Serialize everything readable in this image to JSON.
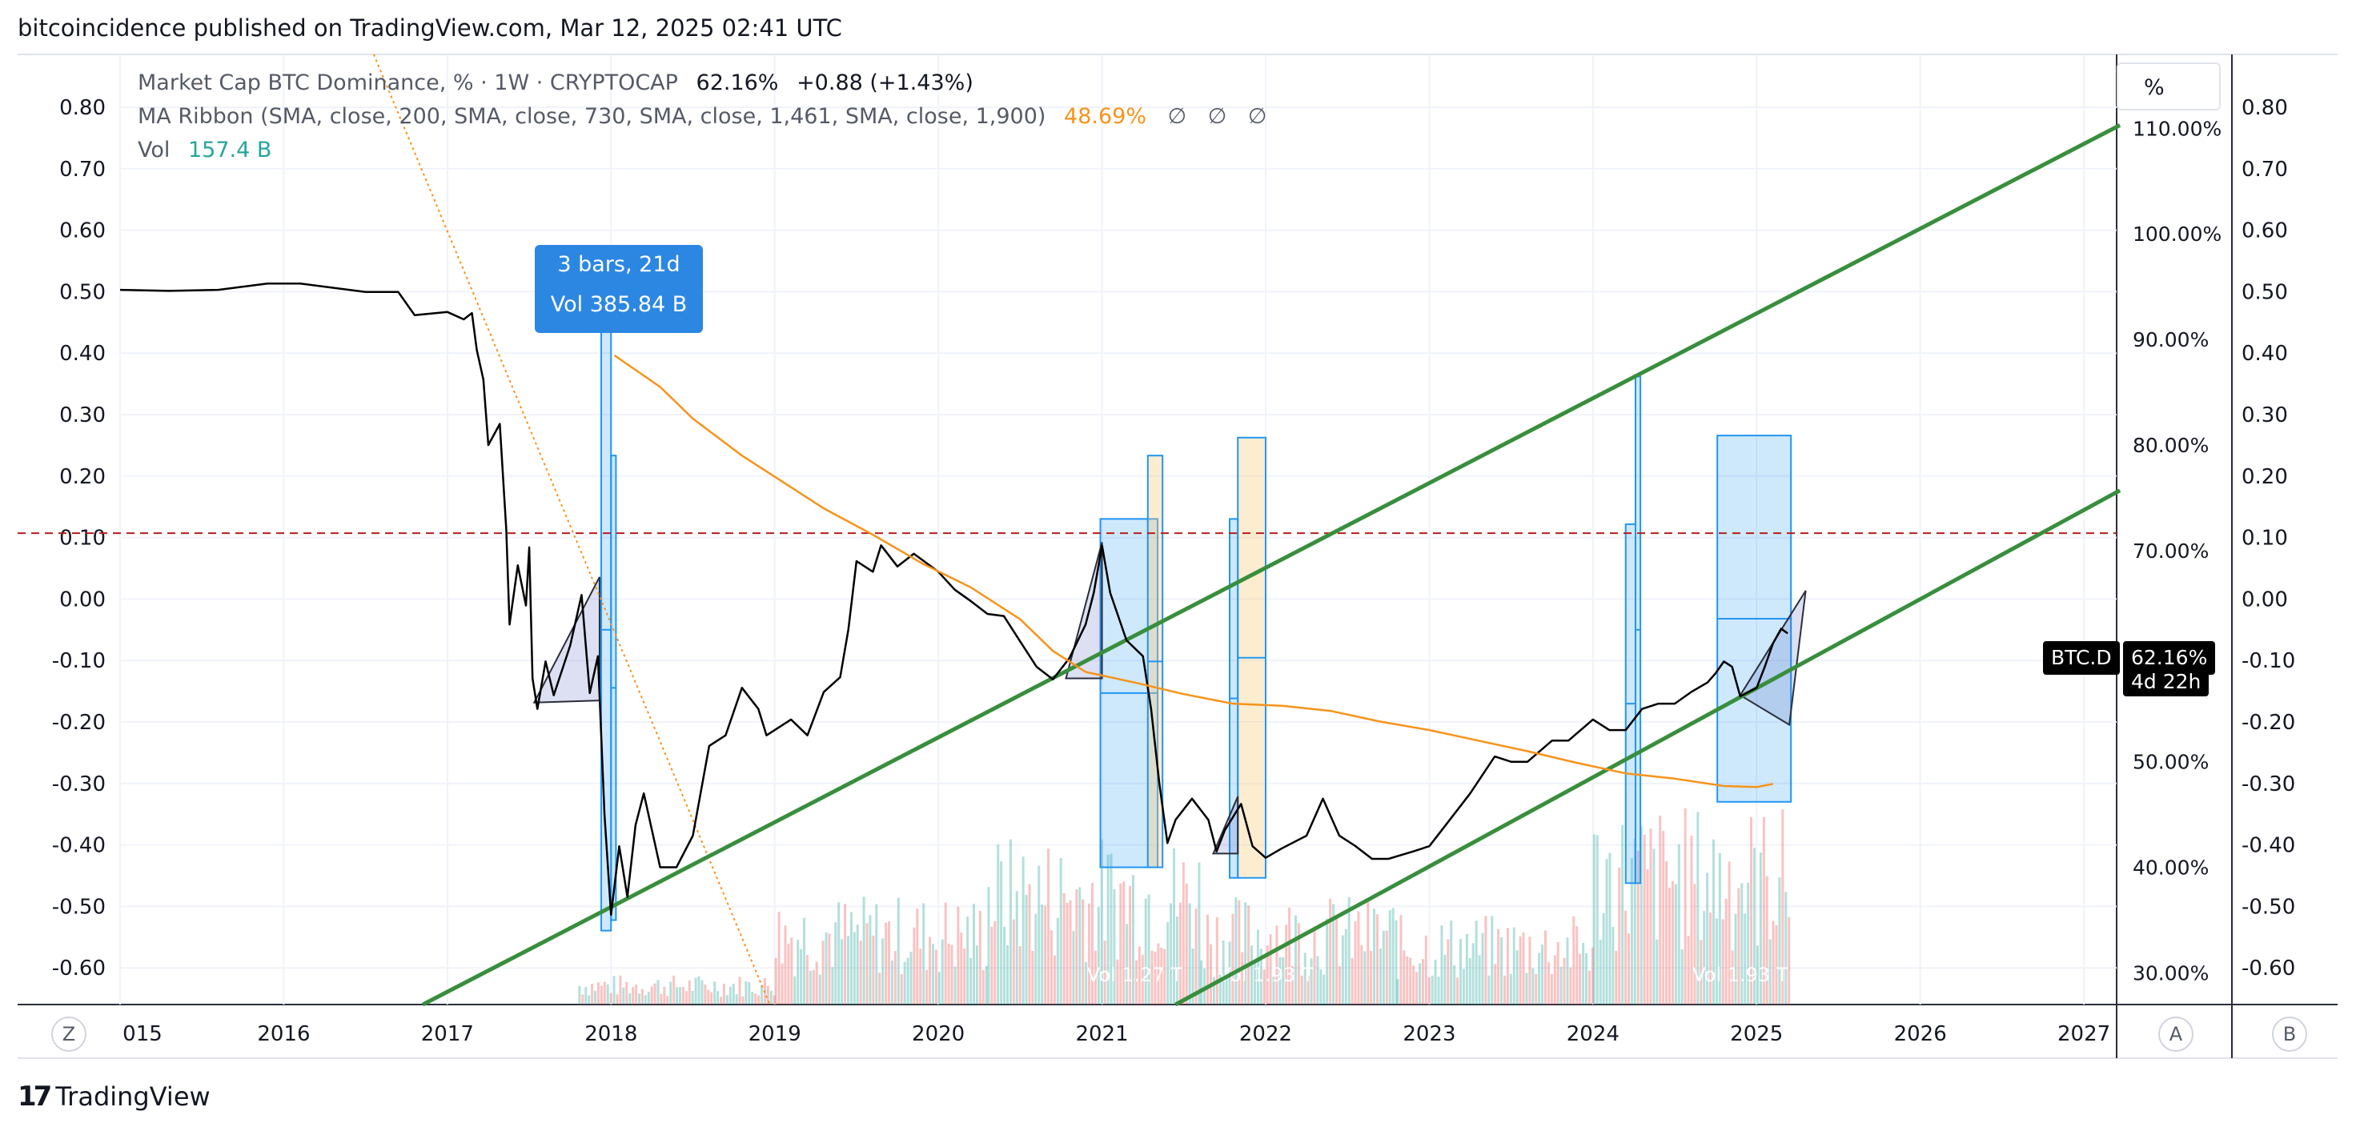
{
  "header": {
    "title": "bitcoincidence published on TradingView.com, Mar 12, 2025 02:41 UTC"
  },
  "legend": {
    "series_name": "Market Cap BTC Dominance, % · 1W · CRYPTOCAP",
    "series_value": "62.16%",
    "series_change": "+0.88 (+1.43%)",
    "ma_name": "MA Ribbon (SMA, close, 200, SMA, close, 730, SMA, close, 1,461, SMA, close, 1,900)",
    "ma_value": "48.69%",
    "ma_na": [
      "∅",
      "∅",
      "∅"
    ],
    "vol_name": "Vol",
    "vol_value": "157.4 B"
  },
  "tooltip": {
    "bars": "3 bars, 21d",
    "vol": "Vol 385.84 B"
  },
  "badge": {
    "symbol": "BTC.D",
    "value": "62.16%",
    "countdown": "4d 22h"
  },
  "pct_button": "%",
  "buttons": {
    "zoom": "Z",
    "auto": "A",
    "b": "B"
  },
  "branding": {
    "logo_text": "TradingView"
  },
  "colors": {
    "price": "#000000",
    "ma": "#f7931a",
    "channel": "#388e3c",
    "dashed": "#b71c1c",
    "trend": "#f7931a",
    "highlight_blue": "#2196f3",
    "highlight_orange": "#f5deb3",
    "vol_up": "#26a69a",
    "vol_down": "#ef5350",
    "badge_bg": "#000000"
  },
  "chart_data": {
    "type": "line",
    "x_ticks": [
      "015",
      "2016",
      "2017",
      "2018",
      "2019",
      "2020",
      "2021",
      "2022",
      "2023",
      "2024",
      "2025",
      "2026",
      "2027"
    ],
    "left_axis_ticks": [
      "0.80",
      "0.70",
      "0.60",
      "0.50",
      "0.40",
      "0.30",
      "0.20",
      "0.10",
      "0.00",
      "-0.10",
      "-0.20",
      "-0.30",
      "-0.40",
      "-0.50",
      "-0.60"
    ],
    "mid_axis_ticks": [
      "110.00%",
      "100.00%",
      "90.00%",
      "80.00%",
      "70.00%",
      "60.00%",
      "50.00%",
      "40.00%",
      "30.00%"
    ],
    "right_axis_ticks": [
      "0.80",
      "0.70",
      "0.60",
      "0.50",
      "0.40",
      "0.30",
      "0.20",
      "0.10",
      "0.00",
      "-0.10",
      "-0.20",
      "-0.30",
      "-0.40",
      "-0.50",
      "-0.60"
    ],
    "ylim_percent": [
      27,
      117
    ],
    "series": [
      {
        "name": "Market Cap BTC Dominance",
        "points": [
          [
            2015.0,
            94.7
          ],
          [
            2015.3,
            94.6
          ],
          [
            2015.6,
            94.7
          ],
          [
            2015.9,
            95.3
          ],
          [
            2016.1,
            95.3
          ],
          [
            2016.3,
            94.9
          ],
          [
            2016.5,
            94.5
          ],
          [
            2016.7,
            94.5
          ],
          [
            2016.8,
            92.3
          ],
          [
            2017.0,
            92.6
          ],
          [
            2017.1,
            91.9
          ],
          [
            2017.15,
            92.5
          ],
          [
            2017.18,
            89.0
          ],
          [
            2017.22,
            86.2
          ],
          [
            2017.25,
            80.0
          ],
          [
            2017.32,
            82.0
          ],
          [
            2017.36,
            72.0
          ],
          [
            2017.38,
            63.0
          ],
          [
            2017.43,
            68.6
          ],
          [
            2017.48,
            64.8
          ],
          [
            2017.5,
            70.3
          ],
          [
            2017.52,
            57.9
          ],
          [
            2017.55,
            55.0
          ],
          [
            2017.6,
            59.5
          ],
          [
            2017.65,
            56.3
          ],
          [
            2017.75,
            61.0
          ],
          [
            2017.82,
            65.8
          ],
          [
            2017.87,
            56.5
          ],
          [
            2017.92,
            60.0
          ],
          [
            2017.96,
            45.0
          ],
          [
            2018.0,
            35.5
          ],
          [
            2018.05,
            42.0
          ],
          [
            2018.1,
            37.2
          ],
          [
            2018.15,
            44.0
          ],
          [
            2018.2,
            47.0
          ],
          [
            2018.3,
            40.0
          ],
          [
            2018.4,
            40.0
          ],
          [
            2018.5,
            43.0
          ],
          [
            2018.6,
            51.5
          ],
          [
            2018.7,
            52.5
          ],
          [
            2018.8,
            57.0
          ],
          [
            2018.9,
            55.0
          ],
          [
            2018.95,
            52.5
          ],
          [
            2019.1,
            54.0
          ],
          [
            2019.2,
            52.5
          ],
          [
            2019.3,
            56.6
          ],
          [
            2019.4,
            58.0
          ],
          [
            2019.45,
            62.5
          ],
          [
            2019.5,
            69.0
          ],
          [
            2019.6,
            68.0
          ],
          [
            2019.65,
            70.5
          ],
          [
            2019.75,
            68.5
          ],
          [
            2019.85,
            69.7
          ],
          [
            2020.0,
            68.0
          ],
          [
            2020.1,
            66.3
          ],
          [
            2020.2,
            65.2
          ],
          [
            2020.3,
            64.0
          ],
          [
            2020.4,
            63.8
          ],
          [
            2020.5,
            61.4
          ],
          [
            2020.6,
            59.0
          ],
          [
            2020.7,
            57.8
          ],
          [
            2020.8,
            59.8
          ],
          [
            2020.9,
            63.0
          ],
          [
            2020.95,
            66.0
          ],
          [
            2021.0,
            70.5
          ],
          [
            2021.05,
            66.0
          ],
          [
            2021.15,
            61.5
          ],
          [
            2021.25,
            60.0
          ],
          [
            2021.3,
            55.0
          ],
          [
            2021.35,
            48.0
          ],
          [
            2021.4,
            42.3
          ],
          [
            2021.45,
            44.5
          ],
          [
            2021.55,
            46.5
          ],
          [
            2021.65,
            44.5
          ],
          [
            2021.7,
            41.5
          ],
          [
            2021.75,
            43.5
          ],
          [
            2021.85,
            46.0
          ],
          [
            2021.92,
            42.0
          ],
          [
            2022.0,
            40.9
          ],
          [
            2022.1,
            41.8
          ],
          [
            2022.25,
            43.0
          ],
          [
            2022.35,
            46.5
          ],
          [
            2022.45,
            43.0
          ],
          [
            2022.55,
            42.0
          ],
          [
            2022.65,
            40.8
          ],
          [
            2022.75,
            40.8
          ],
          [
            2022.9,
            41.5
          ],
          [
            2023.0,
            42.0
          ],
          [
            2023.1,
            44.0
          ],
          [
            2023.25,
            47.0
          ],
          [
            2023.4,
            50.5
          ],
          [
            2023.5,
            50.0
          ],
          [
            2023.6,
            50.0
          ],
          [
            2023.75,
            52.0
          ],
          [
            2023.85,
            52.0
          ],
          [
            2024.0,
            54.0
          ],
          [
            2024.1,
            53.0
          ],
          [
            2024.2,
            53.0
          ],
          [
            2024.3,
            55.0
          ],
          [
            2024.4,
            55.5
          ],
          [
            2024.5,
            55.5
          ],
          [
            2024.6,
            56.6
          ],
          [
            2024.7,
            57.5
          ],
          [
            2024.75,
            58.4
          ],
          [
            2024.8,
            59.5
          ],
          [
            2024.85,
            59.0
          ],
          [
            2024.9,
            56.2
          ],
          [
            2025.0,
            57.0
          ],
          [
            2025.05,
            59.0
          ],
          [
            2025.1,
            61.2
          ],
          [
            2025.15,
            62.6
          ],
          [
            2025.19,
            62.16
          ]
        ]
      },
      {
        "name": "MA Ribbon",
        "points": [
          [
            2018.02,
            88.5
          ],
          [
            2018.3,
            85.5
          ],
          [
            2018.5,
            82.5
          ],
          [
            2018.8,
            79.0
          ],
          [
            2019.0,
            77.0
          ],
          [
            2019.3,
            74.0
          ],
          [
            2019.6,
            71.5
          ],
          [
            2019.9,
            68.8
          ],
          [
            2020.2,
            66.5
          ],
          [
            2020.5,
            63.5
          ],
          [
            2020.7,
            60.5
          ],
          [
            2020.9,
            58.5
          ],
          [
            2021.2,
            57.5
          ],
          [
            2021.5,
            56.4
          ],
          [
            2021.8,
            55.5
          ],
          [
            2022.1,
            55.3
          ],
          [
            2022.4,
            54.8
          ],
          [
            2022.7,
            53.8
          ],
          [
            2023.0,
            53.0
          ],
          [
            2023.3,
            52.0
          ],
          [
            2023.6,
            51.0
          ],
          [
            2023.9,
            49.9
          ],
          [
            2024.2,
            48.9
          ],
          [
            2024.5,
            48.4
          ],
          [
            2024.8,
            47.7
          ],
          [
            2025.0,
            47.6
          ],
          [
            2025.1,
            47.9
          ]
        ]
      }
    ],
    "channel_lines": [
      {
        "p1": [
          2016.85,
          27.0
        ],
        "p2": [
          2027.22,
          110.3
        ]
      },
      {
        "p1": [
          2021.45,
          27.0
        ],
        "p2": [
          2027.22,
          75.7
        ]
      }
    ],
    "resistance_level": 71.65,
    "trend_line": {
      "p1": [
        2016.55,
        117.0
      ],
      "p2": [
        2018.97,
        27.0
      ]
    },
    "highlights": [
      {
        "x1": 2017.94,
        "x2": 2018.0,
        "y1": 34,
        "y2": 91,
        "color": "blue"
      },
      {
        "x1": 2018.0,
        "x2": 2018.03,
        "y1": 35,
        "y2": 79,
        "color": "blue"
      },
      {
        "x1": 2020.99,
        "x2": 2021.34,
        "y1": 40,
        "y2": 73,
        "color": "blue"
      },
      {
        "x1": 2021.28,
        "x2": 2021.37,
        "y1": 40,
        "y2": 79,
        "color": "orange"
      },
      {
        "x1": 2021.78,
        "x2": 2021.83,
        "y1": 39,
        "y2": 73,
        "color": "blue"
      },
      {
        "x1": 2021.83,
        "x2": 2022.0,
        "y1": 39,
        "y2": 80.7,
        "color": "orange"
      },
      {
        "x1": 2024.2,
        "x2": 2024.26,
        "y1": 38.5,
        "y2": 72.5,
        "color": "blue"
      },
      {
        "x1": 2024.26,
        "x2": 2024.29,
        "y1": 38.5,
        "y2": 86.5,
        "color": "blue"
      },
      {
        "x1": 2024.76,
        "x2": 2025.21,
        "y1": 46.2,
        "y2": 80.9,
        "color": "blue"
      }
    ],
    "triangles": [
      [
        [
          2017.53,
          55.6
        ],
        [
          2017.93,
          55.8
        ],
        [
          2017.93,
          67.5
        ]
      ],
      [
        [
          2020.78,
          57.9
        ],
        [
          2021.0,
          70.8
        ],
        [
          2021.0,
          57.9
        ]
      ],
      [
        [
          2021.68,
          41.3
        ],
        [
          2021.83,
          46.7
        ],
        [
          2021.83,
          41.3
        ]
      ],
      [
        [
          2024.9,
          56.3
        ],
        [
          2025.2,
          53.5
        ],
        [
          2025.3,
          66.2
        ]
      ]
    ],
    "volume": {
      "scale_labels": [
        "Vol 1.27 T",
        "Vol 1.93 T",
        "Vol 1.93 T"
      ],
      "regions": [
        {
          "x1": 2017.8,
          "x2": 2019.0,
          "max": 0.15
        },
        {
          "x1": 2019.0,
          "x2": 2020.3,
          "max": 0.55
        },
        {
          "x1": 2020.3,
          "x2": 2021.6,
          "max": 0.85
        },
        {
          "x1": 2021.6,
          "x2": 2022.8,
          "max": 0.55
        },
        {
          "x1": 2022.8,
          "x2": 2024.0,
          "max": 0.45
        },
        {
          "x1": 2024.0,
          "x2": 2025.2,
          "max": 1.0
        }
      ]
    }
  }
}
